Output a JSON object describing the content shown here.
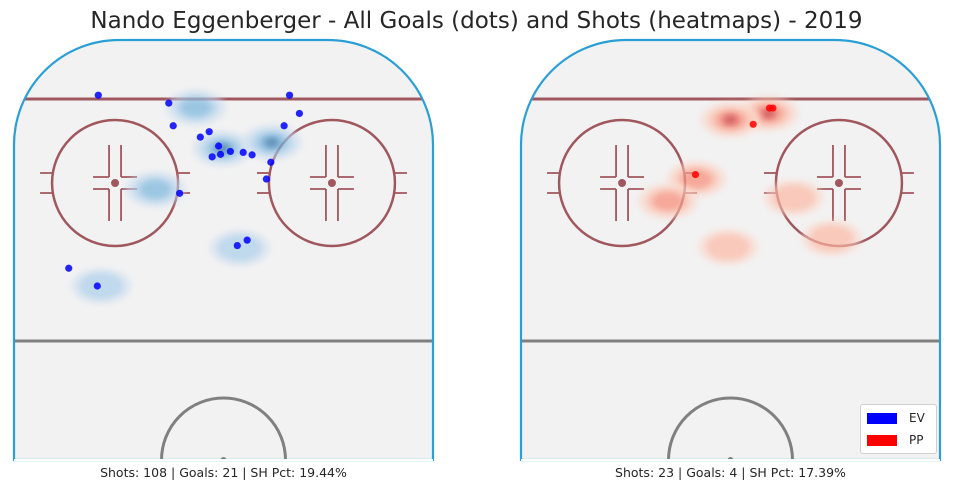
{
  "title": "Nando Eggenberger - All Goals (dots) and Shots (heatmaps) - 2019",
  "colors": {
    "ev": "#0000ff",
    "pp": "#ff0000",
    "rink_border": "#2a9fd6",
    "ice": "#f2f2f2",
    "red_line": "#a0575e",
    "center_line": "#808080"
  },
  "legend": {
    "placement": "lower-right",
    "items": [
      {
        "label": "EV",
        "color": "#0000ff"
      },
      {
        "label": "PP",
        "color": "#ff0000"
      }
    ]
  },
  "chart_data": [
    {
      "type": "scatter",
      "panel": "left",
      "strength": "EV",
      "caption": "Shots: 108 | Goals: 21 | SH Pct: 19.44%",
      "shots": 108,
      "goals": 21,
      "sh_pct": "19.44%",
      "axis_ranges": {
        "x": [
          -42.5,
          42.5
        ],
        "y": [
          0,
          85
        ]
      },
      "goal_points": [
        {
          "x": -25.4,
          "y": 74.0
        },
        {
          "x": 13.4,
          "y": 74.0
        },
        {
          "x": -11.1,
          "y": 72.4
        },
        {
          "x": -10.2,
          "y": 67.8
        },
        {
          "x": -4.7,
          "y": 65.5
        },
        {
          "x": -2.9,
          "y": 66.6
        },
        {
          "x": 12.3,
          "y": 67.8
        },
        {
          "x": 15.4,
          "y": 70.3
        },
        {
          "x": 5.8,
          "y": 61.9
        },
        {
          "x": 4.0,
          "y": 62.4
        },
        {
          "x": -1.0,
          "y": 63.7
        },
        {
          "x": 1.4,
          "y": 62.6
        },
        {
          "x": -0.6,
          "y": 62.0
        },
        {
          "x": -2.3,
          "y": 61.5
        },
        {
          "x": 9.6,
          "y": 60.4
        },
        {
          "x": 8.7,
          "y": 57.0
        },
        {
          "x": -8.9,
          "y": 54.1
        },
        {
          "x": 4.8,
          "y": 44.6
        },
        {
          "x": 2.8,
          "y": 43.5
        },
        {
          "x": -31.4,
          "y": 38.9
        },
        {
          "x": -25.6,
          "y": 35.3
        }
      ],
      "shot_density_hotspots": [
        {
          "x": -0.2,
          "y": 63.2
        },
        {
          "x": 9.8,
          "y": 64.4
        },
        {
          "x": -5.6,
          "y": 71.5
        },
        {
          "x": -13.8,
          "y": 54.9
        },
        {
          "x": 3.3,
          "y": 43.0
        },
        {
          "x": -24.8,
          "y": 35.3
        }
      ]
    },
    {
      "type": "scatter",
      "panel": "right",
      "strength": "PP",
      "caption": "Shots: 23 | Goals: 4 | SH Pct: 17.39%",
      "shots": 23,
      "goals": 4,
      "sh_pct": "17.39%",
      "axis_ranges": {
        "x": [
          -42.5,
          42.5
        ],
        "y": [
          0,
          85
        ]
      },
      "goal_points": [
        {
          "x": 7.9,
          "y": 71.4
        },
        {
          "x": 8.6,
          "y": 71.4
        },
        {
          "x": 4.6,
          "y": 68.1
        },
        {
          "x": -7.1,
          "y": 57.9
        }
      ],
      "shot_density_hotspots": [
        {
          "x": 7.7,
          "y": 70.3
        },
        {
          "x": 0.0,
          "y": 69.0
        },
        {
          "x": -6.9,
          "y": 57.0
        },
        {
          "x": -12.7,
          "y": 52.5
        },
        {
          "x": -0.5,
          "y": 43.2
        },
        {
          "x": 12.8,
          "y": 53.2
        },
        {
          "x": 20.5,
          "y": 45.0
        }
      ]
    }
  ]
}
